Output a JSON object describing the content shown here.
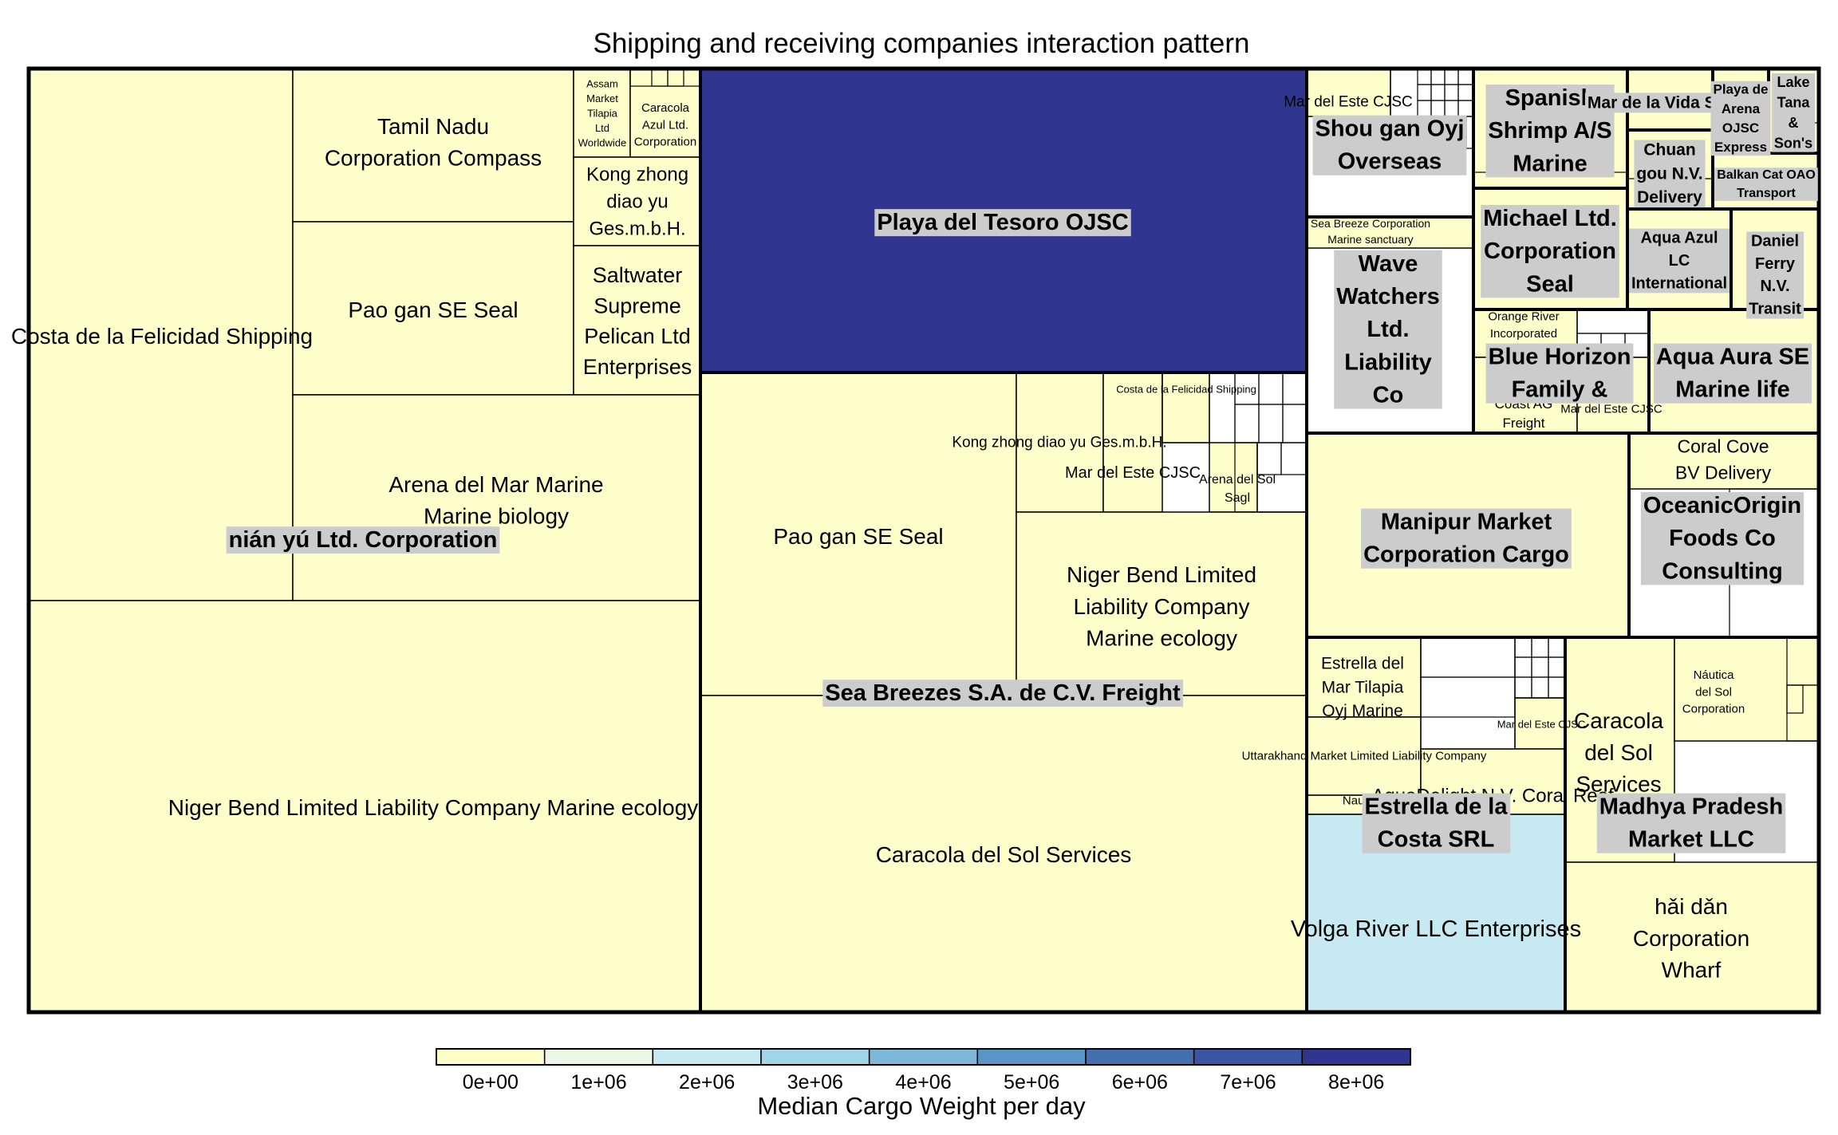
{
  "chart_data": {
    "type": "treemap",
    "title": "Shipping and receiving companies interaction pattern",
    "colorbar": {
      "label": "Median Cargo Weight per day",
      "ticks": [
        "0e+00",
        "1e+06",
        "2e+06",
        "3e+06",
        "4e+06",
        "5e+06",
        "6e+06",
        "7e+06",
        "8e+06"
      ],
      "range": [
        0,
        9000000
      ],
      "colors": [
        "#ffffcc",
        "#edf8e4",
        "#c7e9f1",
        "#a3d3e6",
        "#7fb8d8",
        "#5b95c6",
        "#4470b0",
        "#3b55a3",
        "#303690"
      ]
    },
    "groups": [
      {
        "name": "nián yú Ltd. Corporation",
        "children": [
          {
            "name": "Costa de la Felicidad Shipping",
            "value": 0
          },
          {
            "name": "Tamil Nadu Corporation Compass",
            "value": 0
          },
          {
            "name": "Pao gan SE Seal",
            "value": 0
          },
          {
            "name": "Assam Market Tilapia Ltd Worldwide",
            "value": 0
          },
          {
            "name": "Caracola Azul Ltd. Corporation",
            "value": 0
          },
          {
            "name": "Kong zhong diao yu Ges.m.b.H.",
            "value": 0
          },
          {
            "name": "Saltwater Supreme Pelican Ltd Enterprises",
            "value": 0
          },
          {
            "name": "Arena del Mar Marine Marine biology",
            "value": 0
          },
          {
            "name": "Niger Bend   Limited Liability Company Marine ecology",
            "value": 0
          }
        ]
      },
      {
        "name": "Playa del Tesoro OJSC",
        "children": [
          {
            "name": "Playa del Tesoro OJSC",
            "value": 8500000
          }
        ]
      },
      {
        "name": "Sea Breezes S.A. de C.V. Freight",
        "children": [
          {
            "name": "Pao gan SE Seal",
            "value": 0
          },
          {
            "name": "Kong zhong diao yu Ges.m.b.H.",
            "value": 0
          },
          {
            "name": "Mar del Este CJSC",
            "value": 0
          },
          {
            "name": "Costa de la Felicidad Shipping",
            "value": 0
          },
          {
            "name": "Arena del Sol Sagl",
            "value": 0
          },
          {
            "name": "Niger Bend Limited Liability Company Marine ecology",
            "value": 0
          },
          {
            "name": "Caracola del Sol Services",
            "value": 700000
          }
        ]
      },
      {
        "name": "Shou gan Oyj Overseas",
        "children": [
          {
            "name": "Mar del Este CJSC",
            "value": 0
          }
        ]
      },
      {
        "name": "Spanish Shrimp A/S Marine",
        "children": []
      },
      {
        "name": "Mar de la Vida S.p.A.",
        "children": []
      },
      {
        "name": "Playa de Arena OJSC Express",
        "children": []
      },
      {
        "name": "Lake Tana & Son's",
        "children": []
      },
      {
        "name": "Chuan gou N.V. Delivery",
        "children": []
      },
      {
        "name": "Balkan Cat OAO Transport",
        "children": []
      },
      {
        "name": "Wave Watchers Ltd. Liability Co",
        "children": [
          {
            "name": "Sea Breeze Corporation Marine sanctuary",
            "value": 0
          }
        ]
      },
      {
        "name": "Michael Ltd. Corporation Seal",
        "children": []
      },
      {
        "name": "Aqua Azul LC International",
        "children": [
          {
            "name": "Aqua Azul LC International",
            "value": 0
          }
        ]
      },
      {
        "name": "Daniel Ferry N.V. Transit",
        "children": []
      },
      {
        "name": "Blue Horizon Family &",
        "children": [
          {
            "name": "Orange River Incorporated",
            "value": 0
          },
          {
            "name": "Madagascar Coast AG Freight",
            "value": 0
          },
          {
            "name": "Mar del Este CJSC",
            "value": 0
          }
        ]
      },
      {
        "name": "Aqua Aura SE Marine life",
        "children": []
      },
      {
        "name": "Manipur Market Corporation Cargo",
        "children": []
      },
      {
        "name": "OceanicOrigin Foods Co Consulting",
        "children": [
          {
            "name": "Coral Cove BV Delivery",
            "value": 0
          }
        ]
      },
      {
        "name": "Estrella de la Costa SRL",
        "children": [
          {
            "name": "Estrella del Mar Tilapia Oyj Marine",
            "value": 0
          },
          {
            "name": "Uttarakhand Market Limited Liability Company",
            "value": 0
          },
          {
            "name": "Nautical",
            "value": 0
          },
          {
            "name": "Mar del Este CJSC",
            "value": 0
          },
          {
            "name": "AquaDelight N.V. Coral Reef",
            "value": 0
          },
          {
            "name": "Volga River LLC Enterprises",
            "value": 2000000
          }
        ]
      },
      {
        "name": "Madhya Pradesh Market LLC",
        "children": [
          {
            "name": "Caracola del Sol Services",
            "value": 0
          },
          {
            "name": "Náutica del Sol Corporation",
            "value": 0
          },
          {
            "name": "hǎi dǎn Corporation Wharf",
            "value": 0
          }
        ]
      }
    ]
  }
}
